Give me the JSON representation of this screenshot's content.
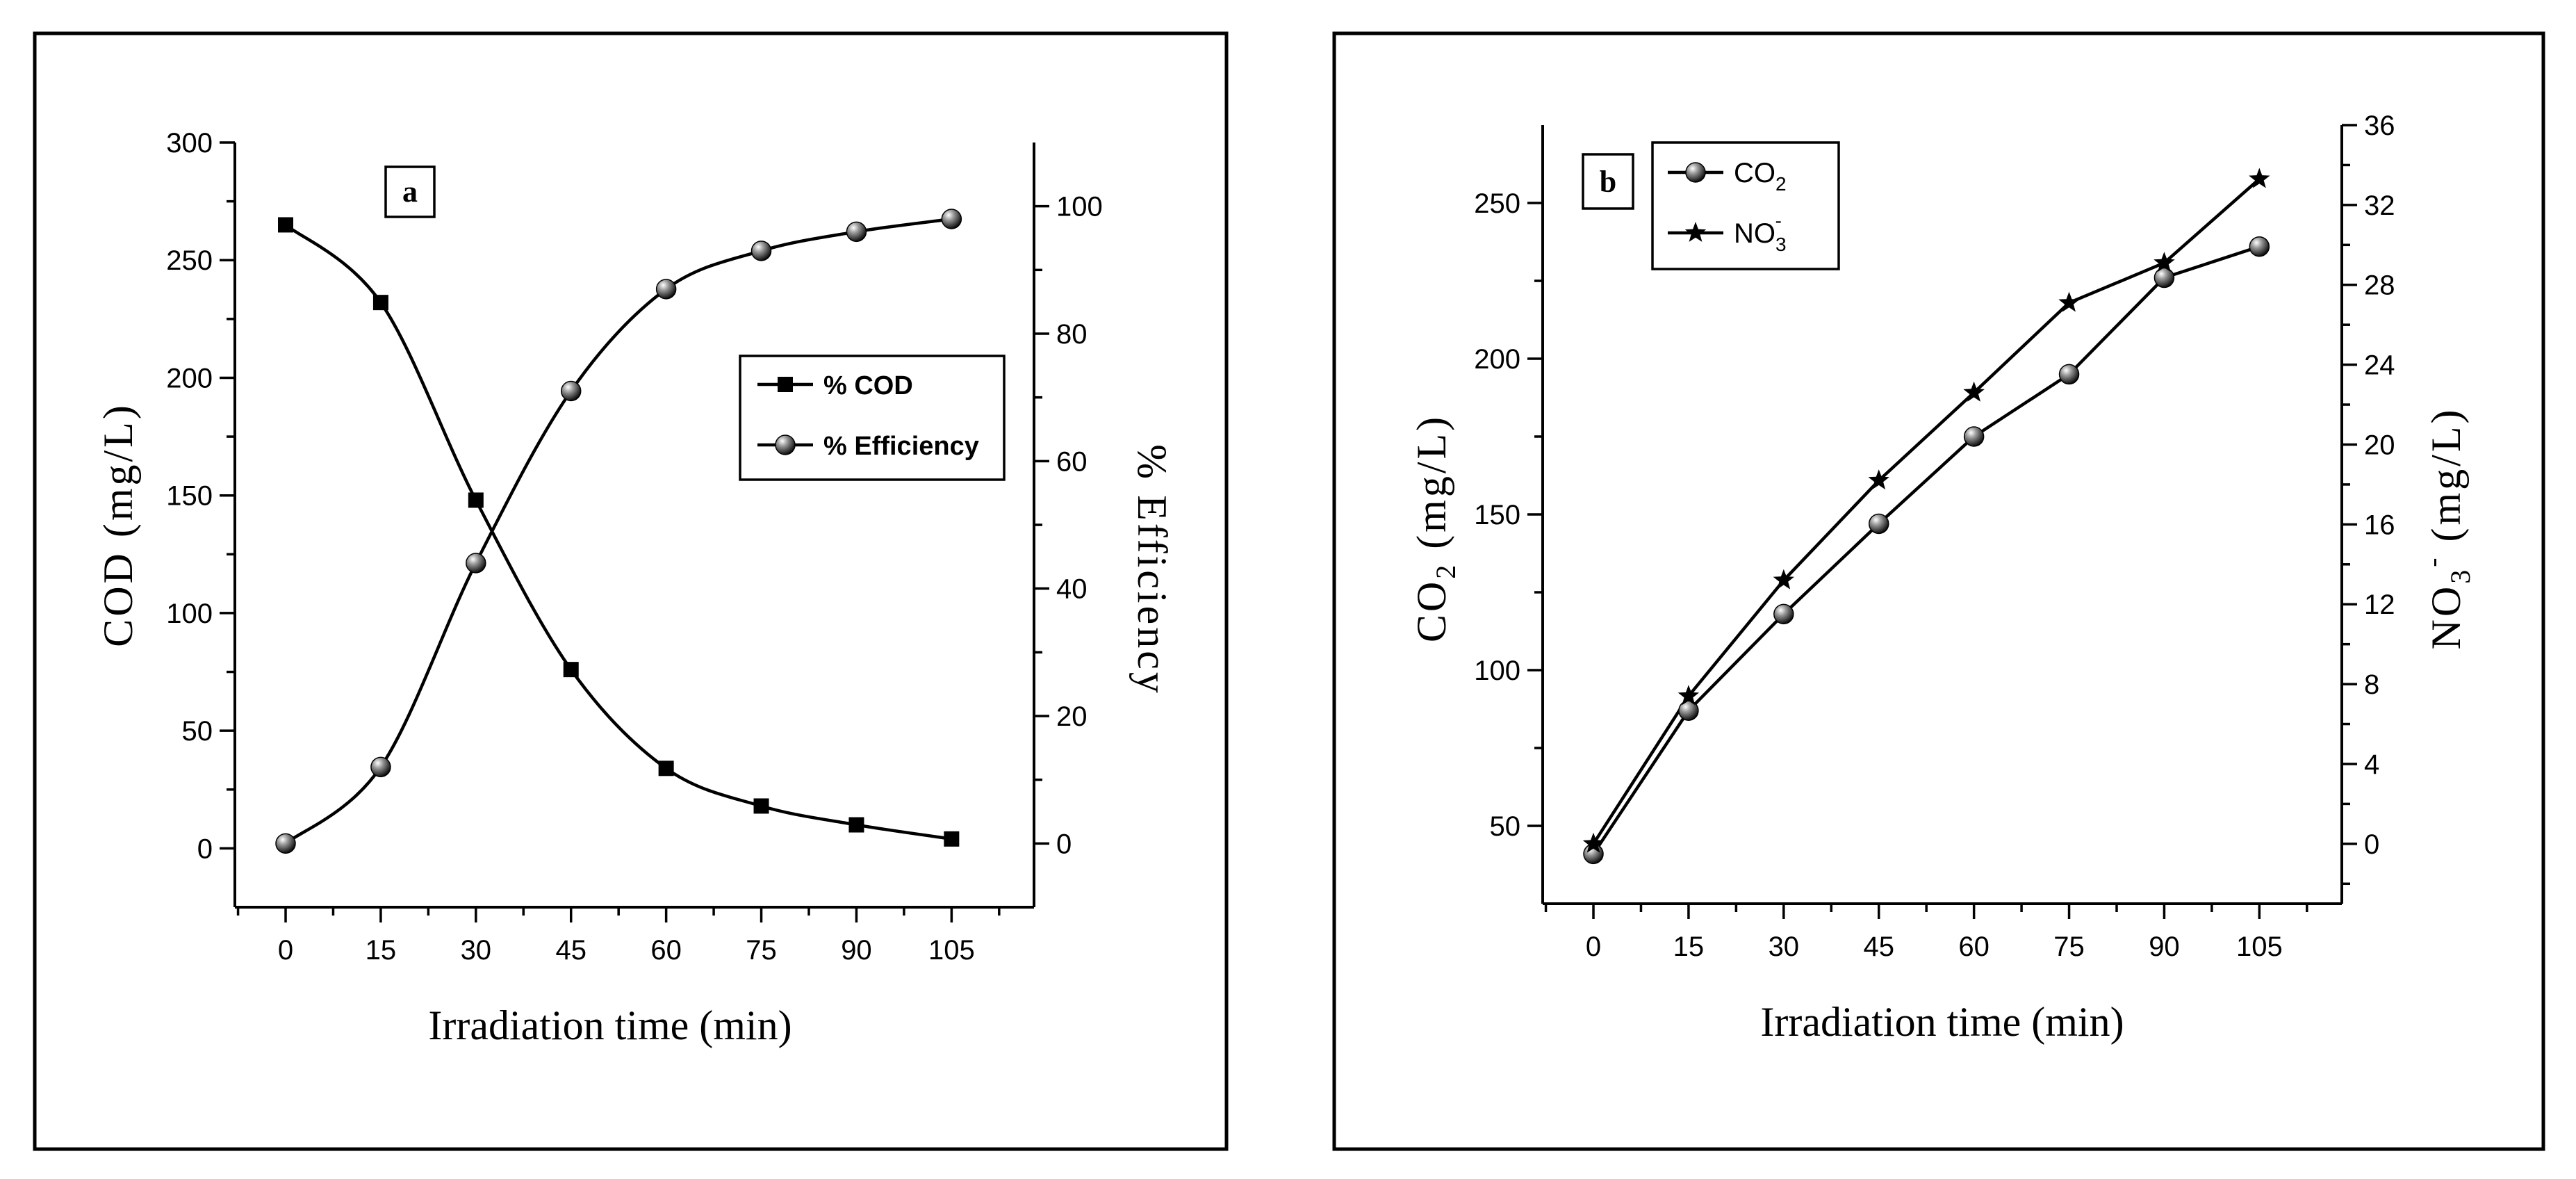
{
  "chart_data": [
    {
      "type": "line",
      "panel_label": "a",
      "x": [
        0,
        15,
        30,
        45,
        60,
        75,
        90,
        105
      ],
      "xlabel": "Irradiation time (min)",
      "xticks": [
        "0",
        "15",
        "30",
        "45",
        "60",
        "75",
        "90",
        "105"
      ],
      "xlim": [
        -8,
        118
      ],
      "ylabel": "COD (mg/L)",
      "ylim": [
        -25,
        300
      ],
      "yticks": [
        "0",
        "50",
        "100",
        "150",
        "200",
        "250",
        "300"
      ],
      "y2label": "% Efficiency",
      "y2lim": [
        -10,
        110
      ],
      "y2ticks": [
        "0",
        "20",
        "40",
        "60",
        "80",
        "100"
      ],
      "series": [
        {
          "name": "% COD",
          "axis": "left",
          "marker": "square",
          "values": [
            265,
            232,
            148,
            76,
            34,
            18,
            10,
            4
          ]
        },
        {
          "name": "% Efficiency",
          "axis": "right",
          "marker": "sphere",
          "values": [
            0,
            12,
            44,
            71,
            87,
            93,
            96,
            98
          ]
        }
      ],
      "legend": [
        "% COD",
        "% Efficiency"
      ],
      "legend_position": "right-middle"
    },
    {
      "type": "line",
      "panel_label": "b",
      "x": [
        0,
        15,
        30,
        45,
        60,
        75,
        90,
        105
      ],
      "xlabel": "Irradiation time (min)",
      "xticks": [
        "0",
        "15",
        "30",
        "45",
        "60",
        "75",
        "90",
        "105"
      ],
      "xlim": [
        -8,
        118
      ],
      "ylabel": "CO",
      "ylabel_sub": "2",
      "ylabel_tail": " (mg/L)",
      "ylim": [
        25,
        275
      ],
      "yticks": [
        "50",
        "100",
        "150",
        "200",
        "250"
      ],
      "y2label": "NO",
      "y2label_sub": "3",
      "y2label_sup": "-",
      "y2label_tail": " (mg/L)",
      "y2lim": [
        -3,
        36
      ],
      "y2ticks": [
        "0",
        "4",
        "8",
        "12",
        "16",
        "20",
        "24",
        "28",
        "32",
        "36"
      ],
      "series": [
        {
          "name": "CO2",
          "axis": "left",
          "marker": "sphere",
          "values": [
            41,
            87,
            118,
            147,
            175,
            195,
            226,
            236
          ]
        },
        {
          "name": "NO3-",
          "axis": "right",
          "marker": "star",
          "values": [
            0,
            7.4,
            13.2,
            18.2,
            22.6,
            27.1,
            29.1,
            33.3
          ]
        }
      ],
      "legend": [
        {
          "main": "CO",
          "sub": "2",
          "sup": ""
        },
        {
          "main": "NO",
          "sub": "3",
          "sup": "-"
        }
      ],
      "legend_position": "top-left"
    }
  ]
}
